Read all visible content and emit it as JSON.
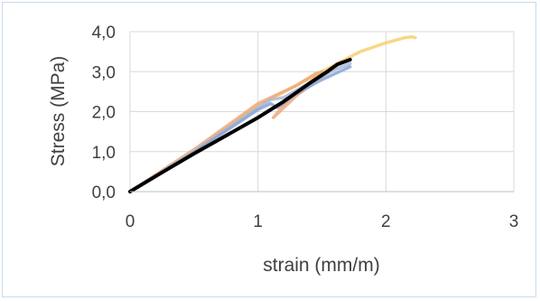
{
  "chart_data": {
    "type": "line",
    "title": "",
    "xlabel": "strain (mm/m)",
    "ylabel": "Stress (MPa)",
    "xlim": [
      0,
      3
    ],
    "ylim": [
      0,
      4
    ],
    "x_ticks": [
      "0",
      "1",
      "2",
      "3"
    ],
    "y_ticks": [
      "0,0",
      "1,0",
      "2,0",
      "3,0",
      "4,0"
    ],
    "grid": "vertical and horizontal major gridlines",
    "legend": "none",
    "series": [
      {
        "color": "#f5d070",
        "points": [
          [
            0,
            0
          ],
          [
            0.5,
            1.0
          ],
          [
            1.0,
            2.15
          ],
          [
            1.5,
            3.0
          ],
          [
            1.8,
            3.5
          ],
          [
            2.0,
            3.72
          ],
          [
            2.15,
            3.85
          ],
          [
            2.2,
            3.87
          ],
          [
            2.23,
            3.85
          ]
        ]
      },
      {
        "color": "#f0a878",
        "points": [
          [
            0,
            0
          ],
          [
            0.5,
            1.05
          ],
          [
            1.0,
            2.2
          ],
          [
            1.3,
            2.65
          ],
          [
            1.45,
            2.95
          ],
          [
            1.5,
            3.0
          ],
          [
            1.2,
            2.15
          ],
          [
            1.12,
            1.85
          ],
          [
            1.3,
            2.4
          ],
          [
            1.55,
            3.0
          ],
          [
            1.65,
            3.25
          ]
        ]
      },
      {
        "color": "#a8b8d8",
        "points": [
          [
            0,
            0
          ],
          [
            0.5,
            1.0
          ],
          [
            1.0,
            2.1
          ],
          [
            1.1,
            2.3
          ],
          [
            1.2,
            2.35
          ],
          [
            1.45,
            2.8
          ],
          [
            1.6,
            3.05
          ],
          [
            1.72,
            3.2
          ]
        ]
      },
      {
        "color": "#8aa6d4",
        "points": [
          [
            0,
            0
          ],
          [
            0.5,
            0.98
          ],
          [
            1.0,
            2.05
          ],
          [
            1.1,
            2.2
          ],
          [
            1.15,
            2.1
          ],
          [
            1.3,
            2.45
          ],
          [
            1.5,
            2.8
          ],
          [
            1.72,
            3.12
          ]
        ]
      },
      {
        "color": "#000000",
        "points": [
          [
            0,
            0
          ],
          [
            0.25,
            0.48
          ],
          [
            0.5,
            0.95
          ],
          [
            0.75,
            1.4
          ],
          [
            1.0,
            1.85
          ],
          [
            1.2,
            2.25
          ],
          [
            1.4,
            2.7
          ],
          [
            1.55,
            3.02
          ],
          [
            1.62,
            3.18
          ],
          [
            1.72,
            3.3
          ]
        ]
      }
    ]
  }
}
